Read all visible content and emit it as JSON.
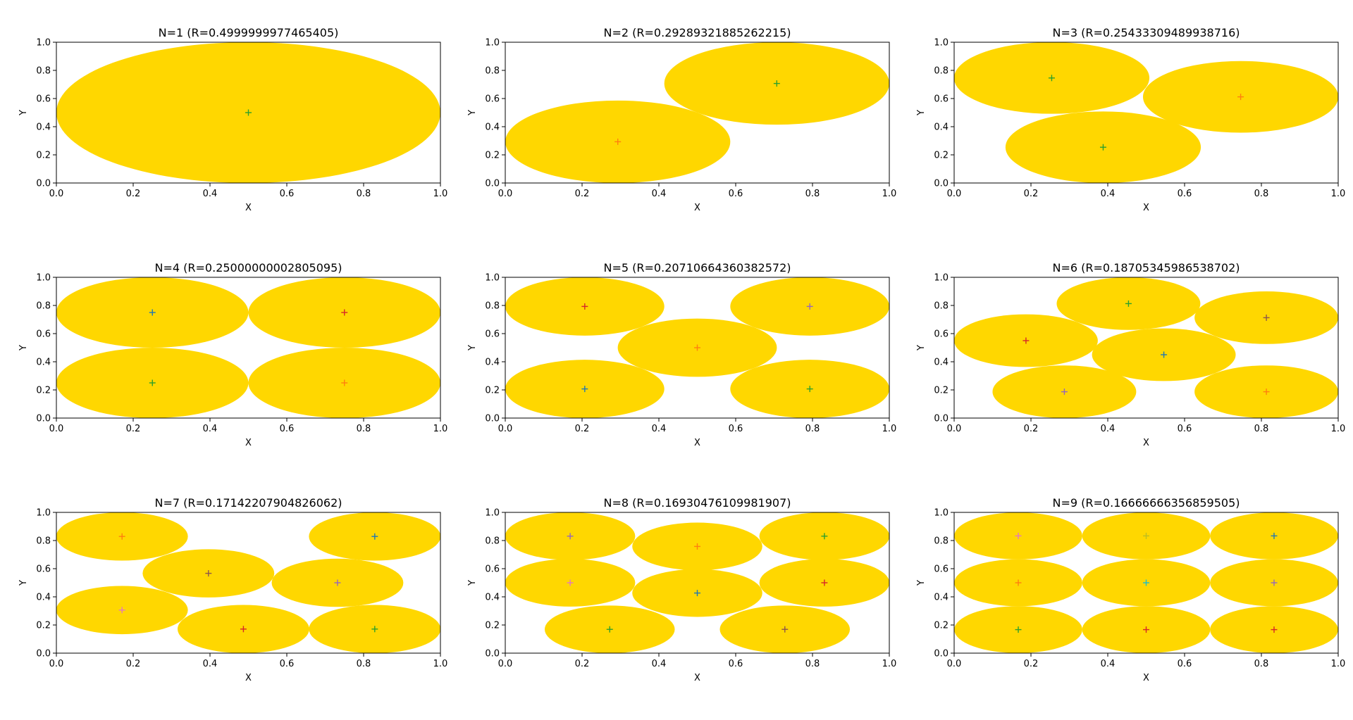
{
  "figure": {
    "xlabel": "X",
    "ylabel": "Y"
  },
  "style": {
    "disk_color": "#ffd700",
    "axes_color": "#000000",
    "marker_colors": [
      "#1f77b4",
      "#ff7f0e",
      "#2ca02c",
      "#d62728",
      "#9467bd",
      "#8c564b",
      "#e377c2",
      "#7f7f7f",
      "#bcbd22",
      "#17becf"
    ]
  },
  "chart_data": [
    {
      "type": "scatter",
      "title": "N=1 (R=0.4999999977465405)",
      "xlabel": "X",
      "ylabel": "Y",
      "xlim": [
        0,
        1
      ],
      "ylim": [
        0,
        1
      ],
      "xticks": [
        "0.0",
        "0.2",
        "0.4",
        "0.6",
        "0.8",
        "1.0"
      ],
      "yticks": [
        "0.0",
        "0.2",
        "0.4",
        "0.6",
        "0.8",
        "1.0"
      ],
      "radius": 0.4999999977465405,
      "centers": [
        [
          0.5,
          0.5
        ]
      ],
      "marker_color_idx": [
        2
      ]
    },
    {
      "type": "scatter",
      "title": "N=2 (R=0.29289321885262215)",
      "xlabel": "X",
      "ylabel": "Y",
      "xlim": [
        0,
        1
      ],
      "ylim": [
        0,
        1
      ],
      "xticks": [
        "0.0",
        "0.2",
        "0.4",
        "0.6",
        "0.8",
        "1.0"
      ],
      "yticks": [
        "0.0",
        "0.2",
        "0.4",
        "0.6",
        "0.8",
        "1.0"
      ],
      "radius": 0.29289321885262215,
      "centers": [
        [
          0.293,
          0.293
        ],
        [
          0.707,
          0.707
        ]
      ],
      "marker_color_idx": [
        1,
        2
      ]
    },
    {
      "type": "scatter",
      "title": "N=3 (R=0.25433309489938716)",
      "xlabel": "X",
      "ylabel": "Y",
      "xlim": [
        0,
        1
      ],
      "ylim": [
        0,
        1
      ],
      "xticks": [
        "0.0",
        "0.2",
        "0.4",
        "0.6",
        "0.8",
        "1.0"
      ],
      "yticks": [
        "0.0",
        "0.2",
        "0.4",
        "0.6",
        "0.8",
        "1.0"
      ],
      "radius": 0.25433309489938716,
      "centers": [
        [
          0.254,
          0.746
        ],
        [
          0.746,
          0.612
        ],
        [
          0.388,
          0.254
        ]
      ],
      "marker_color_idx": [
        2,
        1,
        2
      ]
    },
    {
      "type": "scatter",
      "title": "N=4 (R=0.25000000002805095)",
      "xlabel": "X",
      "ylabel": "Y",
      "xlim": [
        0,
        1
      ],
      "ylim": [
        0,
        1
      ],
      "xticks": [
        "0.0",
        "0.2",
        "0.4",
        "0.6",
        "0.8",
        "1.0"
      ],
      "yticks": [
        "0.0",
        "0.2",
        "0.4",
        "0.6",
        "0.8",
        "1.0"
      ],
      "radius": 0.25000000002805095,
      "centers": [
        [
          0.25,
          0.75
        ],
        [
          0.75,
          0.75
        ],
        [
          0.25,
          0.25
        ],
        [
          0.75,
          0.25
        ]
      ],
      "marker_color_idx": [
        0,
        3,
        2,
        1
      ]
    },
    {
      "type": "scatter",
      "title": "N=5 (R=0.20710664360382572)",
      "xlabel": "X",
      "ylabel": "Y",
      "xlim": [
        0,
        1
      ],
      "ylim": [
        0,
        1
      ],
      "xticks": [
        "0.0",
        "0.2",
        "0.4",
        "0.6",
        "0.8",
        "1.0"
      ],
      "yticks": [
        "0.0",
        "0.2",
        "0.4",
        "0.6",
        "0.8",
        "1.0"
      ],
      "radius": 0.20710664360382572,
      "centers": [
        [
          0.207,
          0.793
        ],
        [
          0.793,
          0.793
        ],
        [
          0.5,
          0.5
        ],
        [
          0.207,
          0.207
        ],
        [
          0.793,
          0.207
        ]
      ],
      "marker_color_idx": [
        3,
        4,
        1,
        0,
        2
      ]
    },
    {
      "type": "scatter",
      "title": "N=6 (R=0.18705345986538702)",
      "xlabel": "X",
      "ylabel": "Y",
      "xlim": [
        0,
        1
      ],
      "ylim": [
        0,
        1
      ],
      "xticks": [
        "0.0",
        "0.2",
        "0.4",
        "0.6",
        "0.8",
        "1.0"
      ],
      "yticks": [
        "0.0",
        "0.2",
        "0.4",
        "0.6",
        "0.8",
        "1.0"
      ],
      "radius": 0.18705345986538702,
      "centers": [
        [
          0.454,
          0.813
        ],
        [
          0.813,
          0.713
        ],
        [
          0.187,
          0.55
        ],
        [
          0.546,
          0.45
        ],
        [
          0.287,
          0.187
        ],
        [
          0.813,
          0.187
        ]
      ],
      "marker_color_idx": [
        2,
        5,
        3,
        0,
        4,
        1
      ]
    },
    {
      "type": "scatter",
      "title": "N=7 (R=0.17142207904826062)",
      "xlabel": "X",
      "ylabel": "Y",
      "xlim": [
        0,
        1
      ],
      "ylim": [
        0,
        1
      ],
      "xticks": [
        "0.0",
        "0.2",
        "0.4",
        "0.6",
        "0.8",
        "1.0"
      ],
      "yticks": [
        "0.0",
        "0.2",
        "0.4",
        "0.6",
        "0.8",
        "1.0"
      ],
      "radius": 0.17142207904826062,
      "centers": [
        [
          0.171,
          0.829
        ],
        [
          0.829,
          0.829
        ],
        [
          0.396,
          0.567
        ],
        [
          0.732,
          0.5
        ],
        [
          0.171,
          0.306
        ],
        [
          0.487,
          0.171
        ],
        [
          0.829,
          0.171
        ]
      ],
      "marker_color_idx": [
        1,
        0,
        5,
        4,
        6,
        3,
        2
      ]
    },
    {
      "type": "scatter",
      "title": "N=8 (R=0.16930476109981907)",
      "xlabel": "X",
      "ylabel": "Y",
      "xlim": [
        0,
        1
      ],
      "ylim": [
        0,
        1
      ],
      "xticks": [
        "0.0",
        "0.2",
        "0.4",
        "0.6",
        "0.8",
        "1.0"
      ],
      "yticks": [
        "0.0",
        "0.2",
        "0.4",
        "0.6",
        "0.8",
        "1.0"
      ],
      "radius": 0.16930476109981907,
      "centers": [
        [
          0.169,
          0.831
        ],
        [
          0.5,
          0.758
        ],
        [
          0.831,
          0.831
        ],
        [
          0.169,
          0.5
        ],
        [
          0.5,
          0.427
        ],
        [
          0.831,
          0.5
        ],
        [
          0.272,
          0.169
        ],
        [
          0.728,
          0.169
        ]
      ],
      "marker_color_idx": [
        4,
        1,
        2,
        6,
        0,
        3,
        2,
        5
      ]
    },
    {
      "type": "scatter",
      "title": "N=9 (R=0.16666666356859505)",
      "xlabel": "X",
      "ylabel": "Y",
      "xlim": [
        0,
        1
      ],
      "ylim": [
        0,
        1
      ],
      "xticks": [
        "0.0",
        "0.2",
        "0.4",
        "0.6",
        "0.8",
        "1.0"
      ],
      "yticks": [
        "0.0",
        "0.2",
        "0.4",
        "0.6",
        "0.8",
        "1.0"
      ],
      "radius": 0.16666666356859505,
      "centers": [
        [
          0.167,
          0.833
        ],
        [
          0.5,
          0.833
        ],
        [
          0.833,
          0.833
        ],
        [
          0.167,
          0.5
        ],
        [
          0.5,
          0.5
        ],
        [
          0.833,
          0.5
        ],
        [
          0.167,
          0.167
        ],
        [
          0.5,
          0.167
        ],
        [
          0.833,
          0.167
        ]
      ],
      "marker_color_idx": [
        6,
        8,
        0,
        1,
        9,
        4,
        2,
        3,
        3
      ]
    }
  ]
}
